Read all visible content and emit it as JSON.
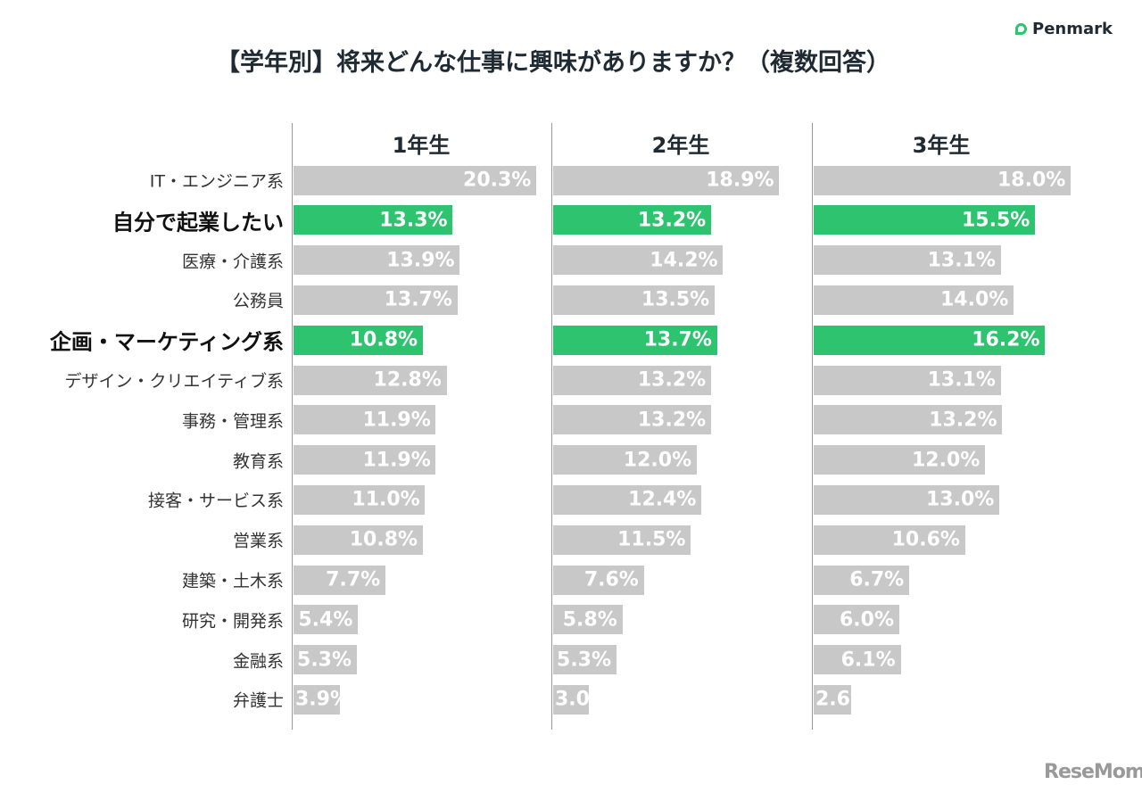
{
  "title": "【学年別】将来どんな仕事に興味がありますか？（複数回答）",
  "logo": "Penmark",
  "watermark": "ReseMom",
  "colors": {
    "default": "#c8c8c8",
    "highlight": "#2ec46f"
  },
  "chart_data": {
    "type": "bar",
    "orientation": "horizontal",
    "categories": [
      "IT・エンジニア系",
      "自分で起業したい",
      "医療・介護系",
      "公務員",
      "企画・マーケティング系",
      "デザイン・クリエイティブ系",
      "事務・管理系",
      "教育系",
      "接客・サービス系",
      "営業系",
      "建築・土木系",
      "研究・開発系",
      "金融系",
      "弁護士"
    ],
    "highlighted": [
      "自分で起業したい",
      "企画・マーケティング系"
    ],
    "unit": "%",
    "series": [
      {
        "name": "1年生",
        "values": [
          20.3,
          13.3,
          13.9,
          13.7,
          10.8,
          12.8,
          11.9,
          11.9,
          11.0,
          10.8,
          7.7,
          5.4,
          5.3,
          3.9
        ]
      },
      {
        "name": "2年生",
        "values": [
          18.9,
          13.2,
          14.2,
          13.5,
          13.7,
          13.2,
          13.2,
          12.0,
          12.4,
          11.5,
          7.6,
          5.8,
          5.3,
          3.0
        ]
      },
      {
        "name": "3年生",
        "values": [
          18.0,
          15.5,
          13.1,
          14.0,
          16.2,
          13.1,
          13.2,
          12.0,
          13.0,
          10.6,
          6.7,
          6.0,
          6.1,
          2.6
        ]
      }
    ]
  }
}
